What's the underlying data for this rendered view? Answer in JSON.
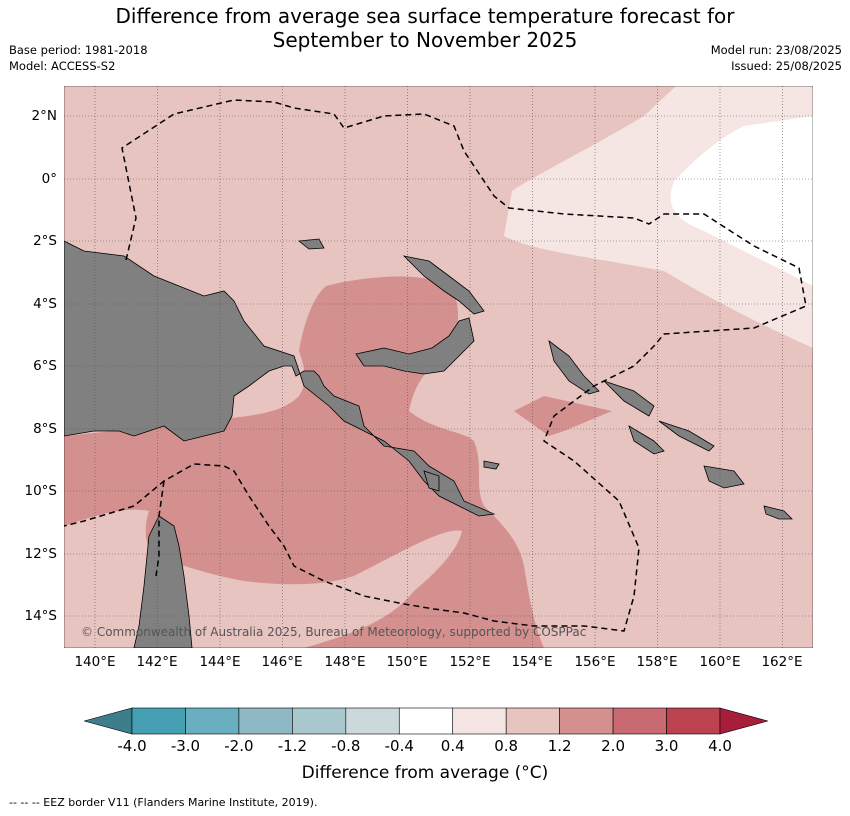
{
  "title_line1": "Difference from average sea surface temperature forecast for",
  "title_line2": "September to November 2025",
  "base_period": "Base period: 1981-2018",
  "model": "Model: ACCESS-S2",
  "model_run": "Model run: 23/08/2025",
  "issued": "Issued: 25/08/2025",
  "copyright": "© Commonwealth of Australia 2025, Bureau of Meteorology, supported by COSPPac",
  "footer_note": "--  --  -- EEZ border V11 (Flanders Marine Institute, 2019).",
  "lat_labels": [
    "2°N",
    "0°",
    "2°S",
    "4°S",
    "6°S",
    "8°S",
    "10°S",
    "12°S",
    "14°S"
  ],
  "lon_labels": [
    "140°E",
    "142°E",
    "144°E",
    "146°E",
    "148°E",
    "150°E",
    "152°E",
    "154°E",
    "156°E",
    "158°E",
    "160°E",
    "162°E"
  ],
  "colorbar": {
    "title": "Difference from average (°C)",
    "tick_labels": [
      "-4.0",
      "-3.0",
      "-2.0",
      "-1.2",
      "-0.8",
      "-0.4",
      "0.4",
      "0.8",
      "1.2",
      "2.0",
      "3.0",
      "4.0"
    ],
    "colors": [
      "#3c7f8b",
      "#46a0b4",
      "#6aafc0",
      "#8db8c4",
      "#a9c8cd",
      "#cbd9dc",
      "#ffffff",
      "#f5e6e4",
      "#e8c4c1",
      "#d4908f",
      "#c96a72",
      "#bd4250",
      "#a81d3a"
    ]
  },
  "legend_colors": {
    "land": "#808080",
    "band_0p4_0p8": "#f5e6e4",
    "band_0p8_1p2": "#e8c4c1",
    "band_1p2_2p0": "#d4908f"
  }
}
